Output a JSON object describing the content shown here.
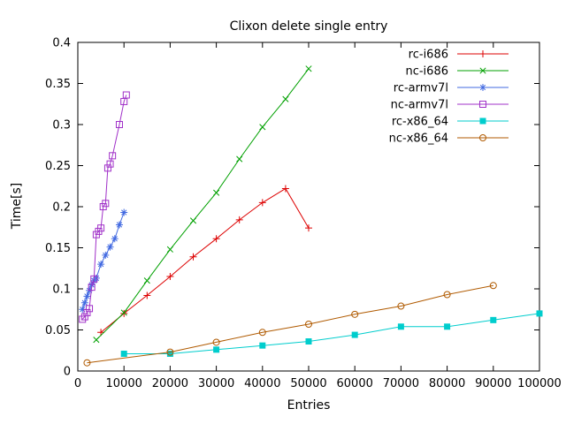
{
  "window": {
    "title": "Clixon delete single entry"
  },
  "chart_data": {
    "type": "line",
    "title": "Clixon delete single entry",
    "xlabel": "Entries",
    "ylabel": "Time[s]",
    "xlim": [
      0,
      100000
    ],
    "ylim": [
      0,
      0.4
    ],
    "x_tick_values": [
      0,
      10000,
      20000,
      30000,
      40000,
      50000,
      60000,
      70000,
      80000,
      90000,
      100000
    ],
    "x_tick_labels": [
      "0",
      "10000",
      "20000",
      "30000",
      "40000",
      "50000",
      "60000",
      "70000",
      "80000",
      "90000",
      "100000"
    ],
    "y_tick_values": [
      0,
      0.05,
      0.1,
      0.15,
      0.2,
      0.25,
      0.3,
      0.35,
      0.4
    ],
    "y_tick_labels": [
      "0",
      "0.05",
      "0.1",
      "0.15",
      "0.2",
      "0.25",
      "0.3",
      "0.35",
      "0.4"
    ],
    "grid": false,
    "legend_position": "top-right",
    "series": [
      {
        "name": "rc-i686",
        "color": "#dd0000",
        "marker": "plus",
        "points": [
          [
            5000,
            0.047
          ],
          [
            10000,
            0.07
          ],
          [
            15000,
            0.092
          ],
          [
            20000,
            0.115
          ],
          [
            25000,
            0.139
          ],
          [
            30000,
            0.161
          ],
          [
            35000,
            0.184
          ],
          [
            40000,
            0.205
          ],
          [
            45000,
            0.222
          ],
          [
            50000,
            0.174
          ]
        ]
      },
      {
        "name": "nc-i686",
        "color": "#00a000",
        "marker": "x",
        "points": [
          [
            4000,
            0.038
          ],
          [
            10000,
            0.071
          ],
          [
            15000,
            0.11
          ],
          [
            20000,
            0.148
          ],
          [
            25000,
            0.183
          ],
          [
            30000,
            0.217
          ],
          [
            35000,
            0.258
          ],
          [
            40000,
            0.297
          ],
          [
            45000,
            0.331
          ],
          [
            50000,
            0.368
          ]
        ]
      },
      {
        "name": "rc-armv7l",
        "color": "#4169e1",
        "marker": "asterisk",
        "points": [
          [
            1000,
            0.075
          ],
          [
            1500,
            0.083
          ],
          [
            2000,
            0.091
          ],
          [
            2500,
            0.098
          ],
          [
            3000,
            0.105
          ],
          [
            3500,
            0.11
          ],
          [
            4000,
            0.113
          ],
          [
            5000,
            0.13
          ],
          [
            6000,
            0.141
          ],
          [
            7000,
            0.151
          ],
          [
            8000,
            0.161
          ],
          [
            9000,
            0.178
          ],
          [
            10000,
            0.193
          ]
        ]
      },
      {
        "name": "nc-armv7l",
        "color": "#a030c8",
        "marker": "square-open",
        "points": [
          [
            1000,
            0.063
          ],
          [
            1500,
            0.066
          ],
          [
            2000,
            0.071
          ],
          [
            2500,
            0.076
          ],
          [
            3000,
            0.102
          ],
          [
            3500,
            0.112
          ],
          [
            4000,
            0.166
          ],
          [
            4500,
            0.17
          ],
          [
            5000,
            0.174
          ],
          [
            5500,
            0.2
          ],
          [
            6000,
            0.204
          ],
          [
            6500,
            0.247
          ],
          [
            7000,
            0.252
          ],
          [
            7500,
            0.262
          ],
          [
            9000,
            0.3
          ],
          [
            10000,
            0.328
          ],
          [
            10500,
            0.336
          ]
        ]
      },
      {
        "name": "rc-x86_64",
        "color": "#00cdcd",
        "marker": "square-filled",
        "points": [
          [
            10000,
            0.021
          ],
          [
            20000,
            0.021
          ],
          [
            30000,
            0.026
          ],
          [
            40000,
            0.031
          ],
          [
            50000,
            0.036
          ],
          [
            60000,
            0.044
          ],
          [
            70000,
            0.054
          ],
          [
            80000,
            0.054
          ],
          [
            90000,
            0.062
          ],
          [
            100000,
            0.07
          ]
        ]
      },
      {
        "name": "nc-x86_64",
        "color": "#b05a00",
        "marker": "circle-open",
        "points": [
          [
            2000,
            0.01
          ],
          [
            20000,
            0.023
          ],
          [
            30000,
            0.035
          ],
          [
            40000,
            0.047
          ],
          [
            50000,
            0.057
          ],
          [
            60000,
            0.069
          ],
          [
            70000,
            0.079
          ],
          [
            80000,
            0.093
          ],
          [
            90000,
            0.104
          ]
        ]
      }
    ]
  }
}
